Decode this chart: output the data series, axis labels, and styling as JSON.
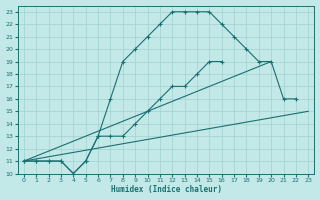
{
  "xlabel": "Humidex (Indice chaleur)",
  "bg_color": "#c2e8e8",
  "grid_color": "#a8d4d4",
  "line_color": "#1a7070",
  "xlim": [
    -0.5,
    23.5
  ],
  "ylim": [
    10,
    23.5
  ],
  "xticks": [
    0,
    1,
    2,
    3,
    4,
    5,
    6,
    7,
    8,
    9,
    10,
    11,
    12,
    13,
    14,
    15,
    16,
    17,
    18,
    19,
    20,
    21,
    22,
    23
  ],
  "yticks": [
    10,
    11,
    12,
    13,
    14,
    15,
    16,
    17,
    18,
    19,
    20,
    21,
    22,
    23
  ],
  "series1_x": [
    0,
    1,
    2,
    3,
    4,
    5,
    6,
    7,
    8,
    9,
    10,
    11,
    12,
    13,
    14,
    15,
    16,
    17,
    18,
    19,
    20,
    21,
    22
  ],
  "series1_y": [
    11,
    11,
    11,
    11,
    10,
    11,
    13,
    16,
    19,
    20,
    21,
    22,
    23,
    23,
    23,
    23,
    22,
    21,
    20,
    19,
    19,
    16,
    16
  ],
  "series2_x": [
    0,
    1,
    2,
    3,
    4,
    5,
    6,
    7,
    8,
    9,
    10,
    11,
    12,
    13,
    14,
    15,
    16
  ],
  "series2_y": [
    11,
    11,
    11,
    11,
    10,
    11,
    13,
    13,
    13,
    14,
    15,
    16,
    17,
    17,
    18,
    19,
    19
  ],
  "series3_x": [
    0,
    23
  ],
  "series3_y": [
    11,
    15
  ],
  "series4_x": [
    0,
    20
  ],
  "series4_y": [
    11,
    19
  ]
}
